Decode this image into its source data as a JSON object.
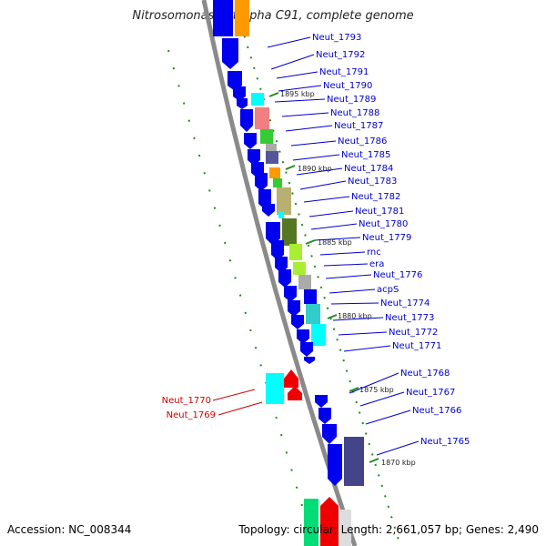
{
  "title": "Nitrosomonas eutropha C91, complete genome",
  "footer": {
    "accession": "Accession: NC_008344",
    "summary": "Topology: circular; Length: 2,661,057 bp; Genes: 2,490"
  },
  "tick_labels": [
    "1895 kbp",
    "1890 kbp",
    "1885 kbp",
    "1880 kbp",
    "1875 kbp",
    "1870 kbp"
  ],
  "gene_labels": [
    {
      "name": "Neut_1793",
      "color": "#0000cc"
    },
    {
      "name": "Neut_1792",
      "color": "#0000cc"
    },
    {
      "name": "Neut_1791",
      "color": "#0000cc"
    },
    {
      "name": "Neut_1790",
      "color": "#0000cc"
    },
    {
      "name": "Neut_1789",
      "color": "#0000cc"
    },
    {
      "name": "Neut_1788",
      "color": "#0000cc"
    },
    {
      "name": "Neut_1787",
      "color": "#0000cc"
    },
    {
      "name": "Neut_1786",
      "color": "#0000cc"
    },
    {
      "name": "Neut_1785",
      "color": "#0000cc"
    },
    {
      "name": "Neut_1784",
      "color": "#0000cc"
    },
    {
      "name": "Neut_1783",
      "color": "#0000cc"
    },
    {
      "name": "Neut_1782",
      "color": "#0000cc"
    },
    {
      "name": "Neut_1781",
      "color": "#0000cc"
    },
    {
      "name": "Neut_1780",
      "color": "#0000cc"
    },
    {
      "name": "Neut_1779",
      "color": "#0000cc"
    },
    {
      "name": "rnc",
      "color": "#0000cc"
    },
    {
      "name": "era",
      "color": "#0000cc"
    },
    {
      "name": "Neut_1776",
      "color": "#0000cc"
    },
    {
      "name": "acpS",
      "color": "#0000cc"
    },
    {
      "name": "Neut_1774",
      "color": "#0000cc"
    },
    {
      "name": "Neut_1773",
      "color": "#0000cc"
    },
    {
      "name": "Neut_1772",
      "color": "#0000cc"
    },
    {
      "name": "Neut_1771",
      "color": "#0000cc"
    },
    {
      "name": "Neut_1768",
      "color": "#0000cc"
    },
    {
      "name": "Neut_1767",
      "color": "#0000cc"
    },
    {
      "name": "Neut_1766",
      "color": "#0000cc"
    },
    {
      "name": "Neut_1765",
      "color": "#0000cc"
    },
    {
      "name": "Neut_1770",
      "color": "#cc0000"
    },
    {
      "name": "Neut_1769",
      "color": "#cc0000"
    }
  ],
  "colors": {
    "backbone": "#888888",
    "forward_cds": "#0000ee",
    "reverse_cds": "#ee0000",
    "tick_mark": "#228b22",
    "label_blue": "#0000cc",
    "label_red": "#cc0000"
  }
}
